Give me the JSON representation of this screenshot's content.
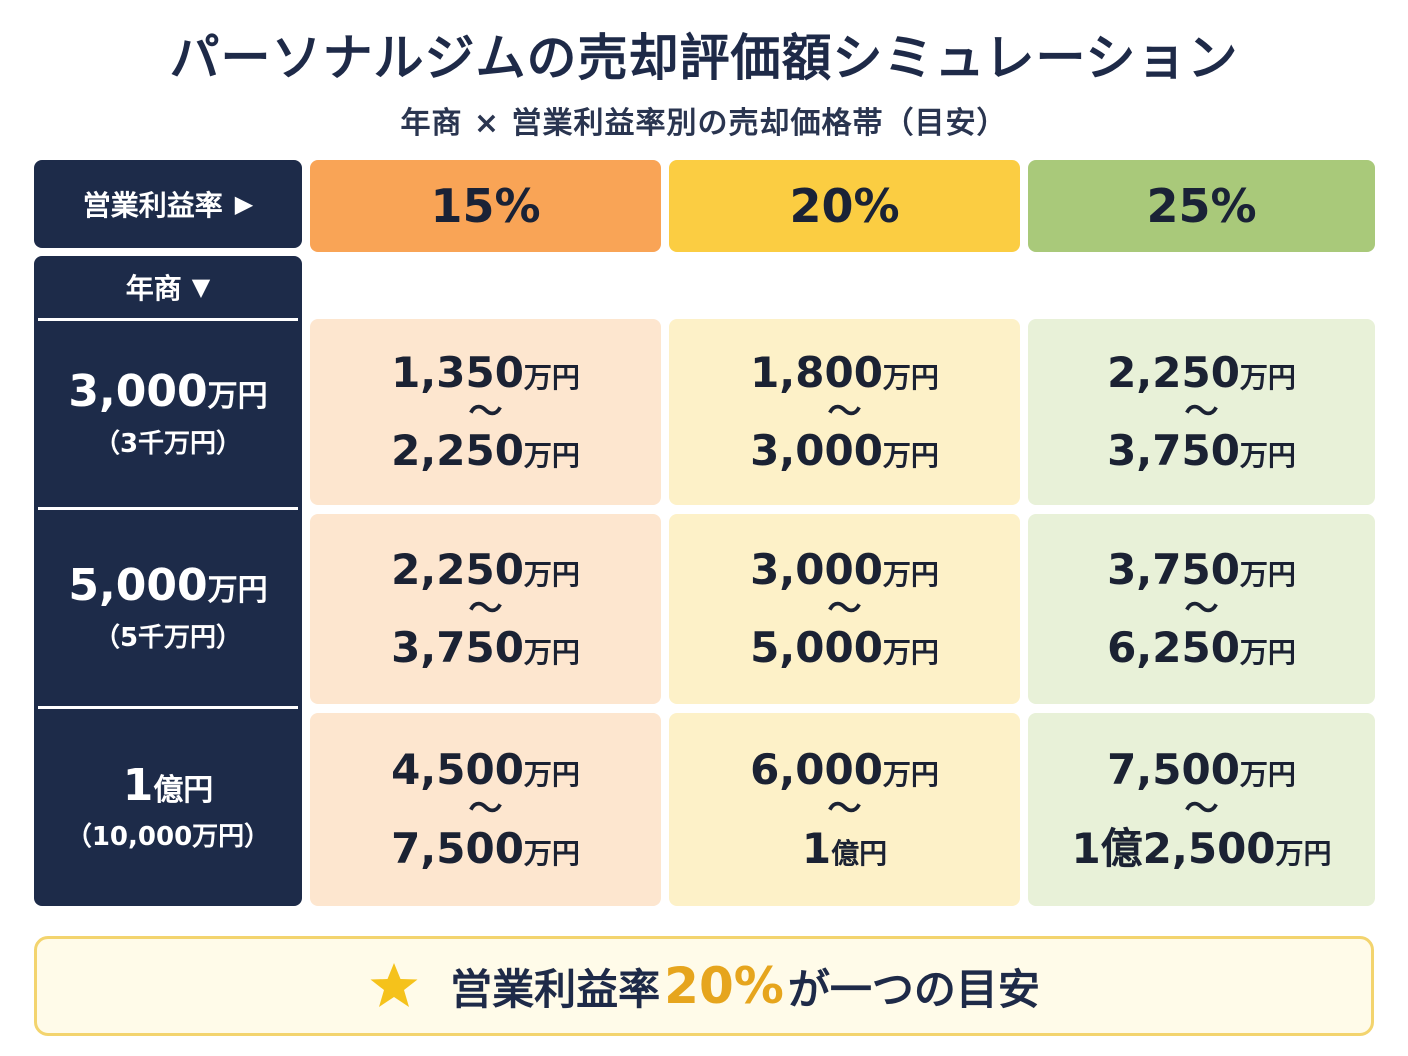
{
  "title": "パーソナルジムの売却評価額シミュレーション",
  "subtitle": "年商 × 営業利益率別の売却価格帯（目安）",
  "corner": {
    "label": "営業利益率",
    "arrow": "▶"
  },
  "row_header": {
    "label": "年商",
    "arrow": "▼"
  },
  "columns": [
    {
      "label": "15%",
      "color": "#f9a456",
      "cell_color": "#fde6cf"
    },
    {
      "label": "20%",
      "color": "#fbcd42",
      "cell_color": "#fdf1c8"
    },
    {
      "label": "25%",
      "color": "#a9c97a",
      "cell_color": "#e8f1d8"
    }
  ],
  "rows": [
    {
      "revenue_num": "3,000",
      "revenue_unit": "万円",
      "revenue_sub": "（3千万円）",
      "cells": [
        {
          "low": "1,350",
          "low_unit": "万円",
          "high": "2,250",
          "high_unit": "万円"
        },
        {
          "low": "1,800",
          "low_unit": "万円",
          "high": "3,000",
          "high_unit": "万円"
        },
        {
          "low": "2,250",
          "low_unit": "万円",
          "high": "3,750",
          "high_unit": "万円"
        }
      ]
    },
    {
      "revenue_num": "5,000",
      "revenue_unit": "万円",
      "revenue_sub": "（5千万円）",
      "cells": [
        {
          "low": "2,250",
          "low_unit": "万円",
          "high": "3,750",
          "high_unit": "万円"
        },
        {
          "low": "3,000",
          "low_unit": "万円",
          "high": "5,000",
          "high_unit": "万円"
        },
        {
          "low": "3,750",
          "low_unit": "万円",
          "high": "6,250",
          "high_unit": "万円"
        }
      ]
    },
    {
      "revenue_num": "1",
      "revenue_unit": "億円",
      "revenue_sub": "（10,000万円）",
      "cells": [
        {
          "low": "4,500",
          "low_unit": "万円",
          "high": "7,500",
          "high_unit": "万円"
        },
        {
          "low": "6,000",
          "low_unit": "万円",
          "high": "1",
          "high_unit": "億円"
        },
        {
          "low": "7,500",
          "low_unit": "万円",
          "high": "1億2,500",
          "high_unit": "万円"
        }
      ]
    }
  ],
  "range_symbol": "～",
  "footer": {
    "prefix": "営業利益率",
    "highlight": "20%",
    "suffix": "が一つの目安",
    "icon": "star-icon",
    "highlight_color": "#e6a51d",
    "star_color": "#f5c21b"
  }
}
